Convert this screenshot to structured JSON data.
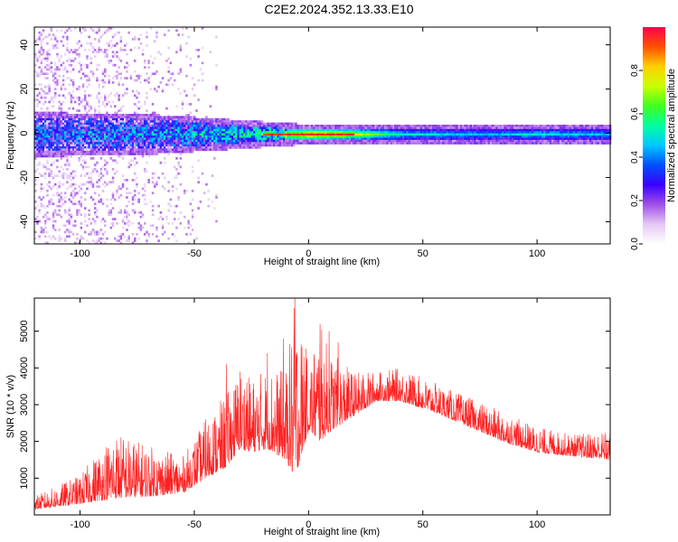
{
  "page": {
    "title": "C2E2.2024.352.13.33.E10"
  },
  "chart_data": [
    {
      "type": "heatmap",
      "xlabel": "Height of straight line (km)",
      "ylabel": "Frequency (Hz)",
      "xlim": [
        -120,
        132
      ],
      "ylim": [
        -50,
        48
      ],
      "xticks": [
        -100,
        -50,
        0,
        50,
        100
      ],
      "yticks": [
        -40,
        -20,
        0,
        20,
        40
      ],
      "grid": false,
      "colorbar": {
        "label": "Normalized spectral amplitude",
        "range": [
          0,
          1
        ],
        "ticks": [
          0.0,
          0.2,
          0.4,
          0.6,
          0.8
        ],
        "colormap": [
          "#ffffff",
          "#e6c8f5",
          "#a050e8",
          "#3a00ff",
          "#0050ff",
          "#00c8ff",
          "#00ffa0",
          "#40ff20",
          "#c8ff00",
          "#ffd000",
          "#ff5000",
          "#ff0050"
        ]
      },
      "band": {
        "center_hz": 0,
        "points": [
          {
            "x": -120,
            "halfwidth_hz": 8,
            "amp": 0.35
          },
          {
            "x": -100,
            "halfwidth_hz": 7,
            "amp": 0.35
          },
          {
            "x": -80,
            "halfwidth_hz": 7,
            "amp": 0.38
          },
          {
            "x": -60,
            "halfwidth_hz": 6,
            "amp": 0.4
          },
          {
            "x": -45,
            "halfwidth_hz": 5,
            "amp": 0.45
          },
          {
            "x": -30,
            "halfwidth_hz": 4,
            "amp": 0.5
          },
          {
            "x": -15,
            "halfwidth_hz": 3,
            "amp": 0.6
          },
          {
            "x": 0,
            "halfwidth_hz": 2,
            "amp": 0.9
          },
          {
            "x": 15,
            "halfwidth_hz": 2,
            "amp": 0.85
          },
          {
            "x": 40,
            "halfwidth_hz": 2,
            "amp": 0.5
          },
          {
            "x": 80,
            "halfwidth_hz": 2,
            "amp": 0.45
          },
          {
            "x": 100,
            "halfwidth_hz": 2,
            "amp": 0.5
          },
          {
            "x": 132,
            "halfwidth_hz": 2,
            "amp": 0.45
          }
        ],
        "scatter_region": {
          "x": [
            -120,
            -40
          ],
          "freq": [
            -50,
            48
          ],
          "amp": 0.1
        }
      }
    },
    {
      "type": "line",
      "xlabel": "Height of straight line (km)",
      "ylabel": "SNR (10 * v/v)",
      "xlim": [
        -120,
        132
      ],
      "ylim": [
        0,
        5900
      ],
      "xticks": [
        -100,
        -50,
        0,
        50,
        100
      ],
      "yticks": [
        1000,
        2000,
        3000,
        4000,
        5000
      ],
      "grid": false,
      "color": "#ff2020",
      "envelope": [
        {
          "x": -120,
          "base": 150,
          "peak": 500
        },
        {
          "x": -100,
          "base": 300,
          "peak": 1100
        },
        {
          "x": -85,
          "base": 450,
          "peak": 2300
        },
        {
          "x": -70,
          "base": 500,
          "peak": 1900
        },
        {
          "x": -55,
          "base": 600,
          "peak": 1600
        },
        {
          "x": -45,
          "base": 1000,
          "peak": 2600
        },
        {
          "x": -36,
          "base": 1300,
          "peak": 3300
        },
        {
          "x": -30,
          "base": 1800,
          "peak": 4000
        },
        {
          "x": -25,
          "base": 1700,
          "peak": 3700
        },
        {
          "x": -18,
          "base": 1800,
          "peak": 4100
        },
        {
          "x": -10,
          "base": 1500,
          "peak": 3900
        },
        {
          "x": -6,
          "base": 1000,
          "peak": 5900
        },
        {
          "x": 0,
          "base": 2300,
          "peak": 4200
        },
        {
          "x": 5,
          "base": 2000,
          "peak": 5200
        },
        {
          "x": 10,
          "base": 2300,
          "peak": 4400
        },
        {
          "x": 20,
          "base": 2700,
          "peak": 3900
        },
        {
          "x": 30,
          "base": 3100,
          "peak": 3900
        },
        {
          "x": 40,
          "base": 3100,
          "peak": 4000
        },
        {
          "x": 55,
          "base": 2800,
          "peak": 3600
        },
        {
          "x": 70,
          "base": 2400,
          "peak": 3200
        },
        {
          "x": 85,
          "base": 2000,
          "peak": 2800
        },
        {
          "x": 100,
          "base": 1700,
          "peak": 2400
        },
        {
          "x": 115,
          "base": 1600,
          "peak": 2200
        },
        {
          "x": 132,
          "base": 1500,
          "peak": 2300
        }
      ],
      "spikes": [
        {
          "x": -45,
          "y": 2600
        },
        {
          "x": -36,
          "y": 4100
        },
        {
          "x": -30,
          "y": 3900
        },
        {
          "x": -27,
          "y": 3600
        },
        {
          "x": -18,
          "y": 4400
        },
        {
          "x": -11,
          "y": 4800
        },
        {
          "x": -6,
          "y": 5900
        },
        {
          "x": -2,
          "y": 4300
        },
        {
          "x": 5,
          "y": 5200
        },
        {
          "x": 9,
          "y": 5000
        },
        {
          "x": 13,
          "y": 4700
        }
      ]
    }
  ]
}
